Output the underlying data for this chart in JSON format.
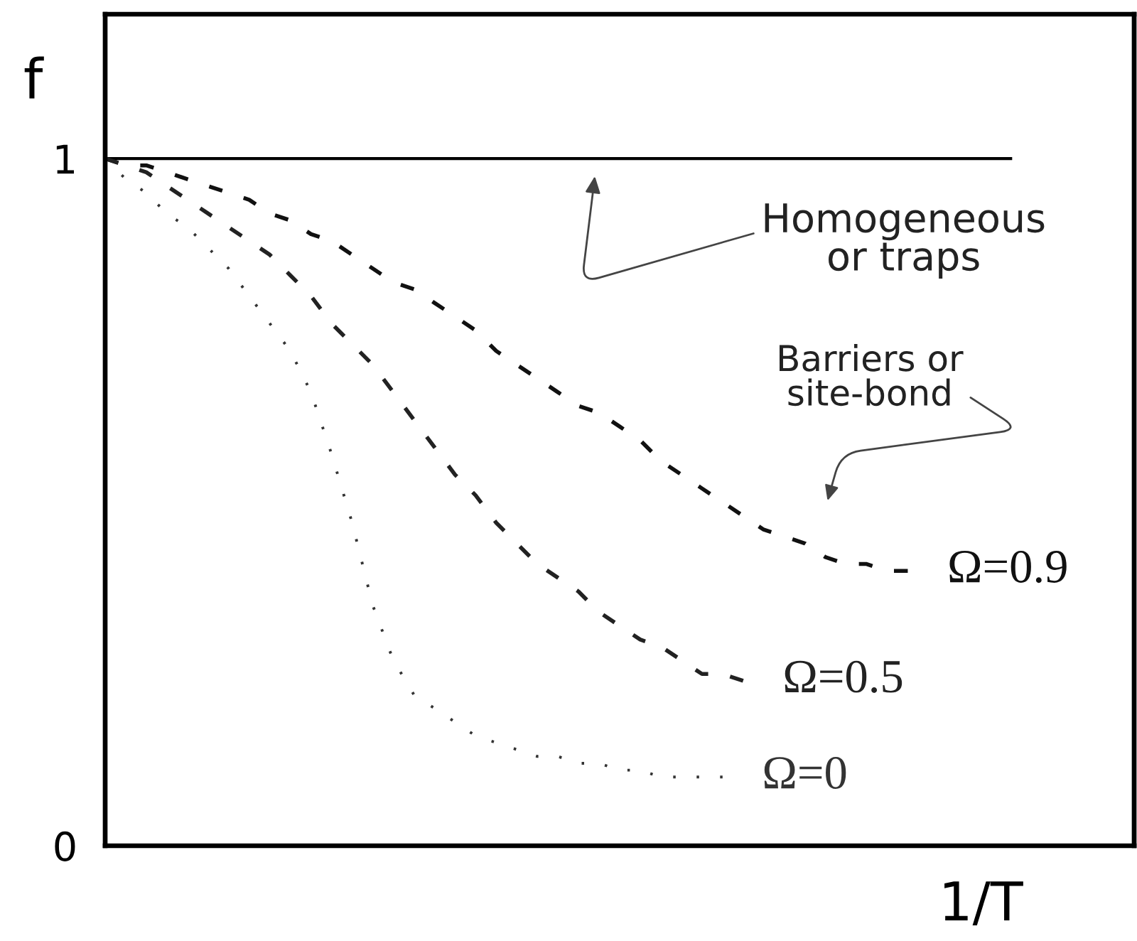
{
  "chart_data": {
    "type": "line",
    "xlabel": "1/T",
    "ylabel": "f",
    "categories": [
      null,
      null,
      null,
      null,
      null,
      null,
      null,
      null,
      null,
      null,
      null,
      null,
      null,
      null,
      null,
      null,
      null,
      null,
      null,
      null,
      null,
      null,
      null,
      null,
      null,
      null,
      null,
      null,
      null,
      null,
      null,
      null,
      null,
      null,
      null,
      null,
      null,
      null,
      null,
      null,
      null,
      null,
      null,
      null,
      null,
      null,
      null,
      null,
      null,
      null,
      null
    ],
    "ylim": [
      0,
      1.21
    ],
    "yticks": [
      0,
      1
    ],
    "series": [
      {
        "color": "#000000",
        "line_style": "solid",
        "values": [
          1,
          1,
          1,
          1,
          1,
          1,
          1,
          1,
          1,
          1,
          1,
          1,
          1,
          1,
          1,
          1,
          1,
          1,
          1,
          1,
          1,
          1,
          1,
          1,
          1,
          1,
          1,
          1,
          1,
          1,
          1,
          1,
          1,
          1,
          1,
          1,
          1,
          1,
          1,
          1,
          1,
          1,
          1,
          1,
          1,
          null,
          null,
          null,
          null,
          null,
          null
        ]
      },
      {
        "name": "Ω=0.9",
        "color": "#111111",
        "line_style": "dashed",
        "values": [
          1.0,
          0.99,
          0.99,
          0.98,
          0.97,
          0.96,
          0.95,
          0.94,
          0.92,
          0.91,
          0.89,
          0.88,
          0.86,
          0.84,
          0.82,
          0.81,
          0.79,
          0.77,
          0.75,
          0.72,
          0.7,
          0.68,
          0.66,
          0.64,
          0.63,
          0.61,
          0.59,
          0.56,
          0.54,
          0.52,
          0.5,
          0.48,
          0.46,
          0.45,
          0.44,
          0.42,
          0.41,
          0.41,
          0.4,
          0.4,
          null,
          null,
          null,
          null,
          null,
          null,
          null,
          null,
          null,
          null,
          null
        ]
      },
      {
        "name": "Ω=0.5",
        "color": "#222222",
        "line_style": "dashed",
        "values": [
          1.0,
          0.99,
          0.98,
          0.96,
          0.94,
          0.92,
          0.9,
          0.88,
          0.86,
          0.83,
          0.8,
          0.76,
          0.73,
          0.7,
          0.66,
          0.62,
          0.58,
          0.54,
          0.51,
          0.47,
          0.44,
          0.41,
          0.39,
          0.37,
          0.34,
          0.32,
          0.3,
          0.29,
          0.27,
          0.25,
          0.25,
          0.24,
          null,
          null,
          null,
          null,
          null,
          null,
          null,
          null,
          null,
          null,
          null,
          null,
          null,
          null,
          null,
          null,
          null,
          null,
          null
        ]
      },
      {
        "name": "Ω=0",
        "color": "#333333",
        "line_style": "dotted",
        "values": [
          1.0,
          0.97,
          0.95,
          0.92,
          0.9,
          0.87,
          0.84,
          0.8,
          0.76,
          0.72,
          0.66,
          0.57,
          0.47,
          0.35,
          0.27,
          0.22,
          0.2,
          0.18,
          0.16,
          0.15,
          0.14,
          0.13,
          0.13,
          0.12,
          0.12,
          0.11,
          0.11,
          0.1,
          0.1,
          0.1,
          0.1,
          null,
          null,
          null,
          null,
          null,
          null,
          null,
          null,
          null,
          null,
          null,
          null,
          null,
          null,
          null,
          null,
          null,
          null,
          null,
          null
        ]
      }
    ],
    "annotations": [
      {
        "text": "Homogeneous\nor traps",
        "y": 1
      },
      "Barriers or\nsite-bond"
    ]
  }
}
